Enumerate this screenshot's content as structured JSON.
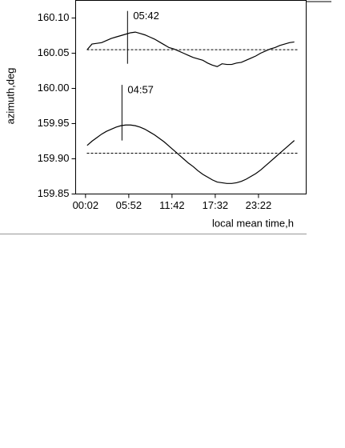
{
  "chart_data": {
    "type": "line",
    "y_label": "azimuth,deg",
    "x_label": "local mean time,h",
    "xlim": [
      -1.3,
      29.8
    ],
    "ylim": [
      159.85,
      160.125
    ],
    "xticks": [
      {
        "value": 0.033,
        "label": "00:02"
      },
      {
        "value": 5.867,
        "label": "05:52"
      },
      {
        "value": 11.7,
        "label": "11:42"
      },
      {
        "value": 17.533,
        "label": "17:32"
      },
      {
        "value": 23.367,
        "label": "23:22"
      }
    ],
    "yticks": [
      159.85,
      {
        "value": 159.9,
        "label": "159.90"
      },
      159.95,
      {
        "value": 160.0,
        "label": "160.00"
      },
      160.05,
      {
        "value": 160.1,
        "label": "160.10"
      }
    ],
    "series": [
      {
        "color": "#000000",
        "x": [
          0.25,
          0.9,
          1.55,
          2.2,
          2.85,
          3.5,
          4.15,
          4.8,
          5.45,
          6.1,
          6.75,
          7.4,
          8.05,
          8.7,
          9.35,
          10,
          10.65,
          11.3,
          11.95,
          12.6,
          13.25,
          13.9,
          14.55,
          15.2,
          15.85,
          16.5,
          17.15,
          17.8,
          18.45,
          19.1,
          19.75,
          20.4,
          21.05,
          21.7,
          22.35,
          23,
          23.65,
          24.3,
          24.95,
          25.6,
          26.25,
          26.9,
          27.55,
          28.2
        ],
        "values": [
          160.055,
          160.063,
          160.064,
          160.065,
          160.068,
          160.071,
          160.073,
          160.075,
          160.077,
          160.079,
          160.08,
          160.078,
          160.076,
          160.073,
          160.07,
          160.066,
          160.062,
          160.058,
          160.056,
          160.053,
          160.05,
          160.047,
          160.044,
          160.042,
          160.04,
          160.036,
          160.033,
          160.031,
          160.035,
          160.034,
          160.034,
          160.036,
          160.037,
          160.04,
          160.043,
          160.046,
          160.05,
          160.053,
          160.056,
          160.058,
          160.061,
          160.063,
          160.065,
          160.066
        ]
      },
      {
        "color": "#000000",
        "x": [
          0.25,
          0.9,
          1.55,
          2.2,
          2.85,
          3.5,
          4.15,
          4.8,
          5.45,
          6.1,
          6.75,
          7.4,
          8.05,
          8.7,
          9.35,
          10,
          10.65,
          11.3,
          11.95,
          12.6,
          13.25,
          13.9,
          14.55,
          15.2,
          15.85,
          16.5,
          17.15,
          17.8,
          18.45,
          19.1,
          19.75,
          20.4,
          21.05,
          21.7,
          22.35,
          23,
          23.65,
          24.3,
          24.95,
          25.6,
          26.25,
          26.9,
          27.55,
          28.2
        ],
        "values": [
          159.919,
          159.925,
          159.93,
          159.935,
          159.939,
          159.942,
          159.945,
          159.947,
          159.948,
          159.948,
          159.947,
          159.945,
          159.942,
          159.938,
          159.934,
          159.929,
          159.924,
          159.918,
          159.912,
          159.906,
          159.9,
          159.894,
          159.889,
          159.883,
          159.878,
          159.874,
          159.87,
          159.867,
          159.866,
          159.865,
          159.865,
          159.866,
          159.868,
          159.871,
          159.875,
          159.879,
          159.884,
          159.89,
          159.896,
          159.902,
          159.908,
          159.914,
          159.92,
          159.926
        ]
      }
    ],
    "hlines": [
      160.055,
      159.908
    ],
    "markers": [
      {
        "label": "05:42",
        "x": 5.7,
        "y": [
          160.035,
          160.11
        ]
      },
      {
        "label": "04:57",
        "x": 4.95,
        "y": [
          159.926,
          160.005
        ]
      }
    ]
  }
}
